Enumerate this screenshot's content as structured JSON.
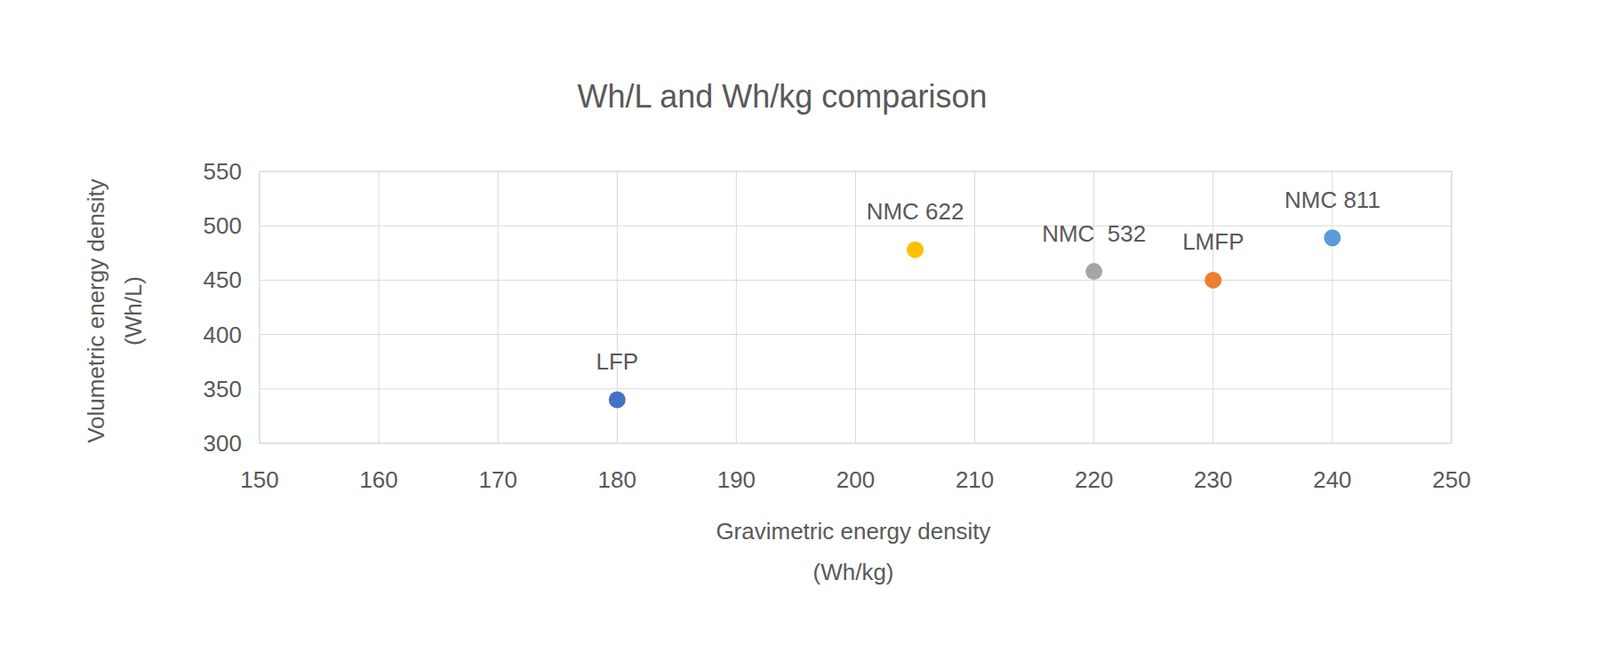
{
  "chart_data": {
    "type": "scatter",
    "title": "Wh/L and Wh/kg comparison",
    "xlabel": [
      "Gravimetric energy density",
      "(Wh/kg)"
    ],
    "ylabel": [
      "Volumetric energy density",
      "(Wh/L)"
    ],
    "x": [
      180,
      205,
      220,
      230,
      240
    ],
    "values": [
      340,
      478,
      458,
      450,
      489
    ],
    "labels": [
      "LFP",
      "NMC 622",
      "NMC  532",
      "LMFP",
      "NMC 811"
    ],
    "colors": [
      "#4472c4",
      "#ffc000",
      "#a5a5a5",
      "#ed7d31",
      "#5b9bd5"
    ],
    "xlim": [
      150,
      250
    ],
    "xticks": [
      150,
      160,
      170,
      180,
      190,
      200,
      210,
      220,
      230,
      240,
      250
    ],
    "ylim": [
      300,
      550
    ],
    "yticks": [
      300,
      350,
      400,
      450,
      500,
      550
    ],
    "grid": true,
    "marker": "circle"
  }
}
